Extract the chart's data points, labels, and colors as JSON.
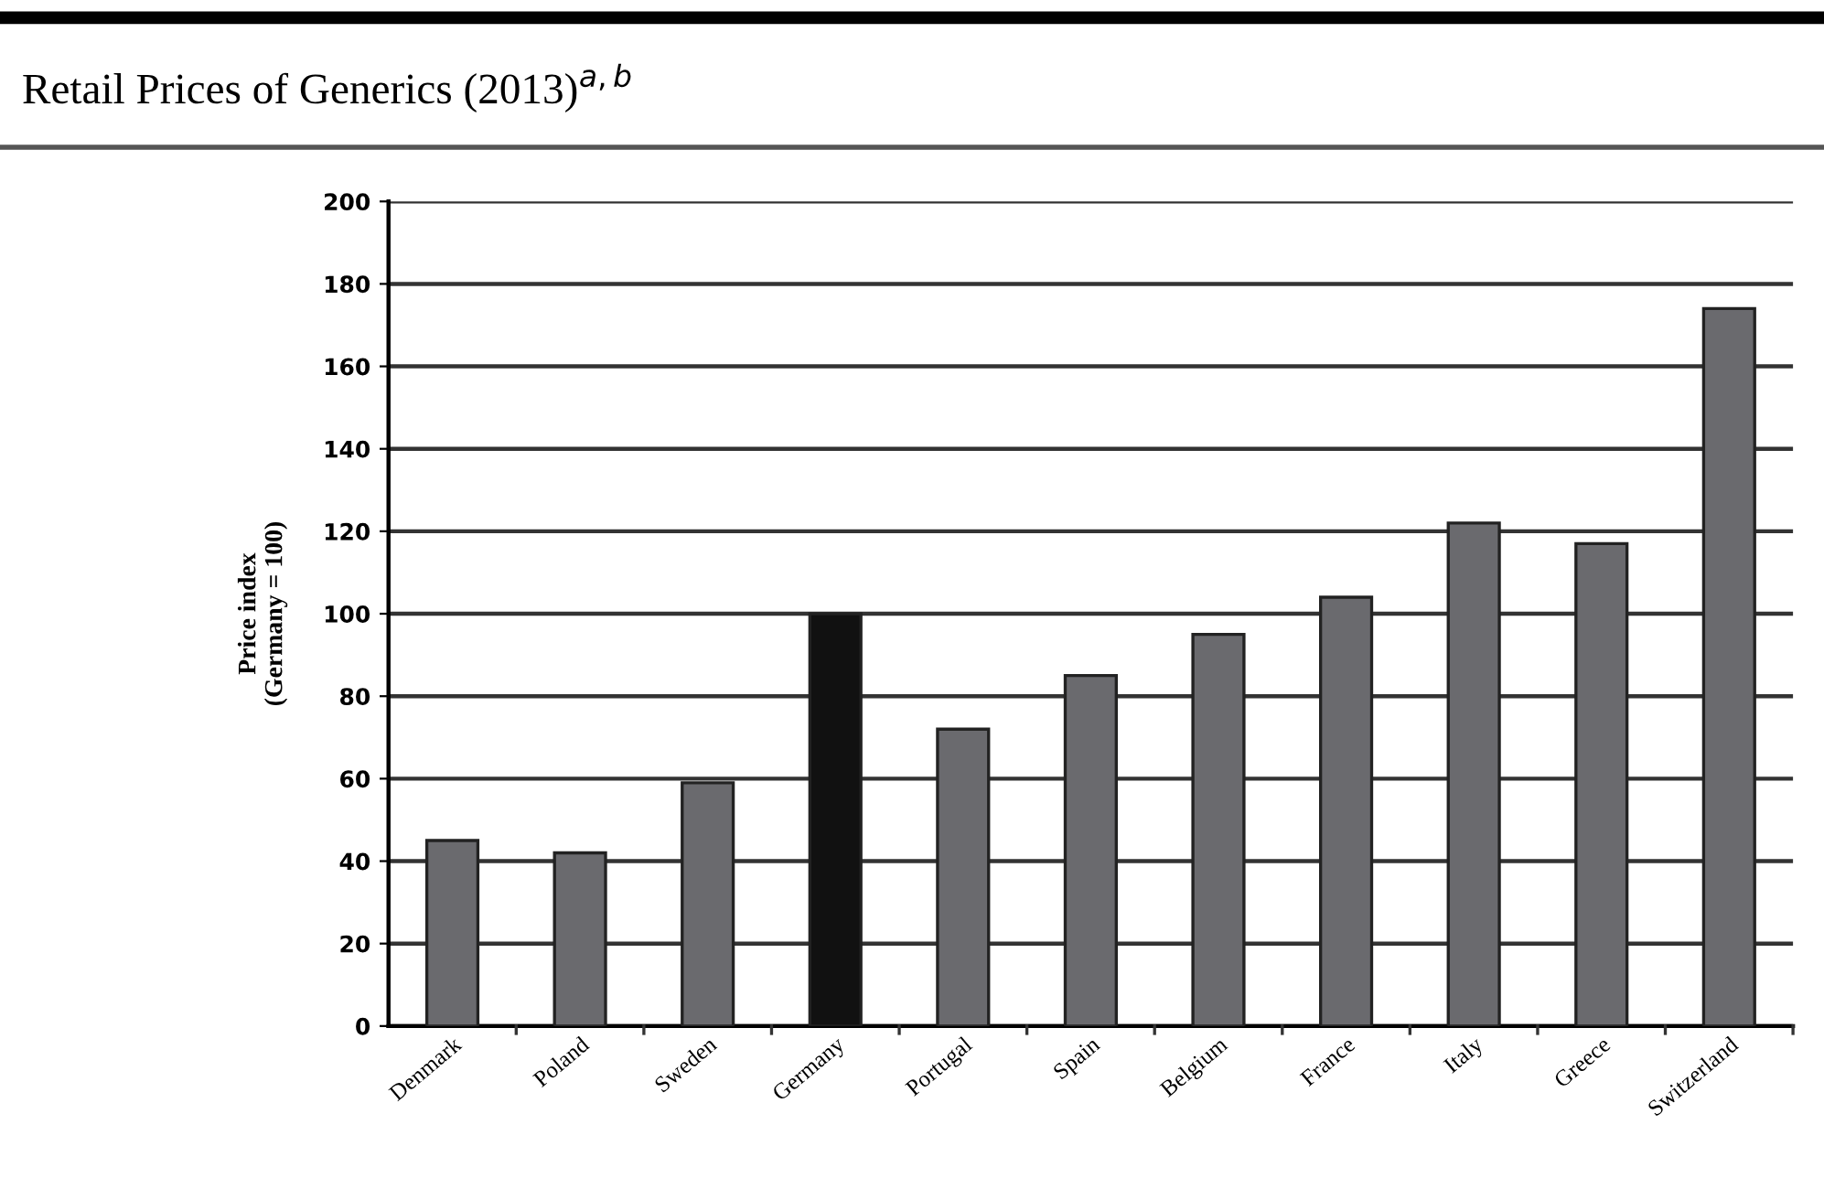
{
  "chart_data": {
    "type": "bar",
    "title": "Retail Prices of Generics (2013)$^{a,b}$",
    "ylabel": "Price index\n(Germany = 100)",
    "categories": [
      "Denmark",
      "Poland",
      "Sweden",
      "Germany",
      "Portugal",
      "Spain",
      "Belgium",
      "France",
      "Italy",
      "Greece",
      "Switzerland"
    ],
    "values": [
      45,
      42,
      59,
      100,
      72,
      85,
      95,
      104,
      122,
      117,
      174
    ],
    "colors": [
      "#6a6a6e",
      "#6a6a6e",
      "#6a6a6e",
      "#111111",
      "#6a6a6e",
      "#6a6a6e",
      "#6a6a6e",
      "#6a6a6e",
      "#6a6a6e",
      "#6a6a6e",
      "#6a6a6e"
    ],
    "ylim": [
      0,
      200
    ],
    "yticks": [
      0,
      20,
      40,
      60,
      80,
      100,
      120,
      140,
      160,
      180,
      200
    ],
    "grid": "y"
  }
}
